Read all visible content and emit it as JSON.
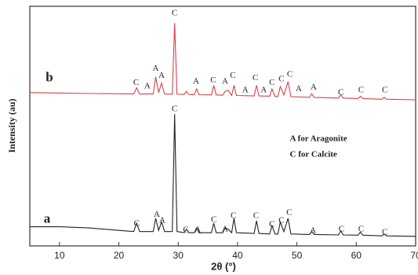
{
  "chart_data": {
    "type": "line",
    "xlabel": "2θ (°)",
    "ylabel": "Intensity (au)",
    "xlim": [
      5,
      70
    ],
    "xticks": [
      10,
      20,
      30,
      40,
      50,
      60,
      70
    ],
    "ylim": [
      0,
      100
    ],
    "x": [
      5,
      10,
      15,
      20,
      22.5,
      23,
      23.5,
      25.8,
      26.2,
      26.7,
      27.2,
      27.7,
      29,
      29.4,
      29.8,
      31,
      31.4,
      31.8,
      32.7,
      33.1,
      33.5,
      35.6,
      36,
      36.4,
      37.5,
      37.9,
      38.4,
      39,
      39.4,
      39.8,
      42.8,
      43.2,
      43.6,
      45.4,
      45.8,
      46.3,
      46.8,
      47.2,
      47.8,
      48.5,
      49,
      52.1,
      52.5,
      52.9,
      57,
      57.4,
      57.8,
      60.3,
      60.7,
      61.1,
      64.3,
      64.7,
      65.1,
      70
    ],
    "series": [
      {
        "name": "b",
        "color": "#d9404a",
        "label_x": 8.3,
        "label_y": 70,
        "values": [
          64,
          63.8,
          63.6,
          63.5,
          63.4,
          66,
          63.4,
          63.4,
          70.5,
          64,
          68,
          63.4,
          63.3,
          93,
          63.3,
          63.2,
          64.5,
          63.2,
          63.1,
          65.5,
          63.1,
          63,
          67,
          63,
          62.9,
          64.5,
          65,
          62.8,
          67,
          62.8,
          62.6,
          67,
          62.6,
          62.5,
          65.5,
          62.4,
          62.4,
          66.5,
          63,
          68.5,
          62.3,
          62,
          63.5,
          62,
          61.7,
          63,
          61.7,
          61.5,
          62.5,
          61.5,
          61.2,
          62,
          61.2,
          61
        ]
      },
      {
        "name": "a",
        "color": "#222222",
        "label_x": 7.9,
        "label_y": 11,
        "values": [
          8,
          8,
          7.5,
          6.5,
          6,
          9.5,
          6,
          6,
          11.5,
          6.5,
          10,
          6,
          6,
          55,
          6,
          5.5,
          7,
          5.5,
          5.5,
          7.5,
          5.5,
          5.5,
          9.5,
          5.5,
          5.5,
          7.5,
          7,
          5.5,
          11.5,
          5.5,
          5.2,
          10.5,
          5.2,
          5,
          8.5,
          5,
          5,
          10,
          6,
          11.5,
          5,
          4.8,
          6,
          4.8,
          4.6,
          6.3,
          4.6,
          4.5,
          5.8,
          4.5,
          4.2,
          5,
          4.2,
          4
        ]
      }
    ],
    "annotations": [
      {
        "text": "C",
        "x": 22.9,
        "y": 68
      },
      {
        "text": "A",
        "x": 24.8,
        "y": 66.5
      },
      {
        "text": "A",
        "x": 26.2,
        "y": 74
      },
      {
        "text": "A",
        "x": 27.2,
        "y": 71
      },
      {
        "text": "C",
        "x": 29.4,
        "y": 97
      },
      {
        "text": "A",
        "x": 33,
        "y": 68.5
      },
      {
        "text": "C",
        "x": 35.9,
        "y": 69
      },
      {
        "text": "A",
        "x": 37.9,
        "y": 68.5
      },
      {
        "text": "C",
        "x": 39.2,
        "y": 71
      },
      {
        "text": "A",
        "x": 41.3,
        "y": 65
      },
      {
        "text": "C",
        "x": 43,
        "y": 70
      },
      {
        "text": "A",
        "x": 44.4,
        "y": 65
      },
      {
        "text": "C",
        "x": 45.8,
        "y": 68
      },
      {
        "text": "C",
        "x": 47.4,
        "y": 69.5
      },
      {
        "text": "C",
        "x": 48.8,
        "y": 71.5
      },
      {
        "text": "A",
        "x": 50.3,
        "y": 65.5
      },
      {
        "text": "A",
        "x": 52.8,
        "y": 66
      },
      {
        "text": "C",
        "x": 57.4,
        "y": 64
      },
      {
        "text": "C",
        "x": 60.8,
        "y": 65
      },
      {
        "text": "C",
        "x": 64.8,
        "y": 65
      },
      {
        "text": "C",
        "x": 23,
        "y": 9.2
      },
      {
        "text": "A",
        "x": 26.4,
        "y": 13
      },
      {
        "text": "A",
        "x": 27.3,
        "y": 10.5
      },
      {
        "text": "C",
        "x": 29.4,
        "y": 57
      },
      {
        "text": "C",
        "x": 31.3,
        "y": 6.6
      },
      {
        "text": "A",
        "x": 33.3,
        "y": 6.6
      },
      {
        "text": "C",
        "x": 36,
        "y": 10.8
      },
      {
        "text": "A",
        "x": 37.9,
        "y": 6.9
      },
      {
        "text": "C",
        "x": 39.3,
        "y": 12.5
      },
      {
        "text": "C",
        "x": 43.1,
        "y": 12.5
      },
      {
        "text": "C",
        "x": 45.8,
        "y": 8.9
      },
      {
        "text": "C",
        "x": 47.4,
        "y": 10.5
      },
      {
        "text": "C",
        "x": 48.7,
        "y": 13.8
      },
      {
        "text": "A",
        "x": 52.7,
        "y": 6.2
      },
      {
        "text": "C",
        "x": 57.5,
        "y": 6.9
      },
      {
        "text": "C",
        "x": 60.8,
        "y": 6.9
      },
      {
        "text": "C",
        "x": 64.8,
        "y": 5.6
      }
    ],
    "notes": [
      {
        "text": "A for Aragonite",
        "x": 48.8,
        "y": 44.6
      },
      {
        "text": "C for Calcite",
        "x": 48.8,
        "y": 38
      }
    ]
  }
}
